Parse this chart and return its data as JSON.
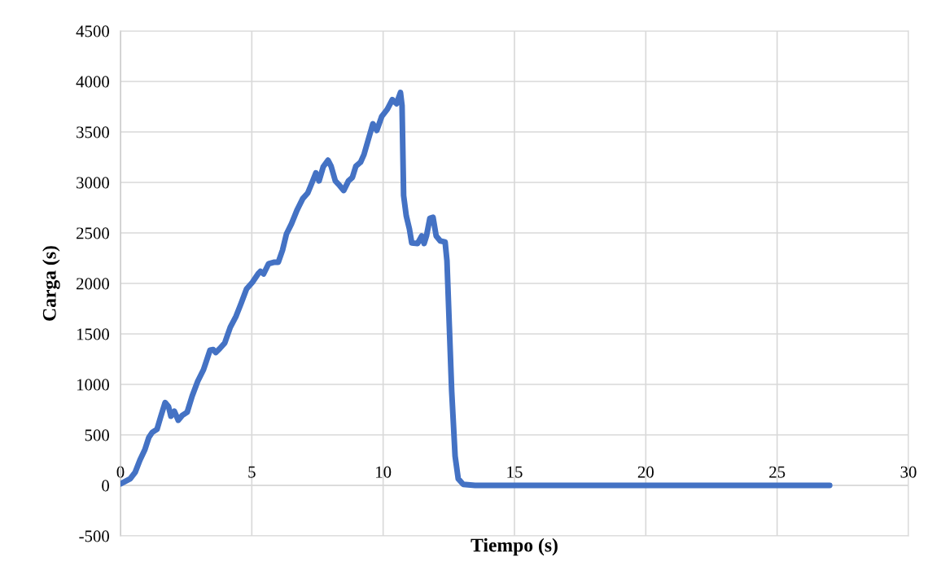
{
  "chart_data": {
    "type": "line",
    "xlabel": "Tiempo (s)",
    "ylabel": "Carga (s)",
    "xlim": [
      0,
      30
    ],
    "xticks": [
      0,
      5,
      10,
      15,
      20,
      25,
      30
    ],
    "ylim": [
      -500,
      4500
    ],
    "yticks": [
      -500,
      0,
      500,
      1000,
      1500,
      2000,
      2500,
      3000,
      3500,
      4000,
      4500
    ],
    "grid": true,
    "marker": "none",
    "line_style": "solid",
    "series": [
      {
        "color": "#4472c4",
        "x": [
          0,
          0.37,
          0.56,
          0.74,
          0.93,
          1.08,
          1.21,
          1.39,
          1.52,
          1.7,
          1.83,
          1.92,
          2.05,
          2.2,
          2.36,
          2.54,
          2.73,
          2.94,
          3.16,
          3.41,
          3.53,
          3.63,
          3.78,
          3.97,
          4.18,
          4.4,
          4.59,
          4.8,
          5.02,
          5.24,
          5.33,
          5.45,
          5.64,
          5.86,
          6.01,
          6.17,
          6.32,
          6.51,
          6.72,
          6.94,
          7.13,
          7.28,
          7.44,
          7.56,
          7.72,
          7.9,
          8.02,
          8.18,
          8.34,
          8.5,
          8.68,
          8.83,
          8.96,
          9.14,
          9.27,
          9.42,
          9.61,
          9.76,
          9.95,
          10.16,
          10.35,
          10.51,
          10.66,
          10.72,
          10.78,
          10.88,
          11.0,
          11.09,
          11.31,
          11.47,
          11.56,
          11.65,
          11.78,
          11.9,
          12.02,
          12.18,
          12.36,
          12.43,
          12.52,
          12.61,
          12.74,
          12.86,
          13.05,
          13.5,
          15,
          20,
          25,
          27
        ],
        "values": [
          15,
          65,
          130,
          250,
          355,
          475,
          525,
          555,
          670,
          820,
          780,
          685,
          735,
          645,
          695,
          725,
          885,
          1030,
          1145,
          1340,
          1345,
          1315,
          1355,
          1410,
          1565,
          1675,
          1800,
          1945,
          2010,
          2095,
          2120,
          2095,
          2195,
          2210,
          2210,
          2330,
          2490,
          2590,
          2725,
          2840,
          2895,
          2990,
          3095,
          3015,
          3155,
          3220,
          3160,
          3015,
          2970,
          2920,
          3015,
          3050,
          3160,
          3200,
          3275,
          3410,
          3580,
          3515,
          3655,
          3725,
          3820,
          3780,
          3890,
          3760,
          2870,
          2670,
          2540,
          2400,
          2395,
          2470,
          2395,
          2470,
          2645,
          2655,
          2470,
          2420,
          2410,
          2225,
          1580,
          935,
          290,
          65,
          10,
          0,
          0,
          0,
          0,
          0
        ]
      }
    ]
  }
}
